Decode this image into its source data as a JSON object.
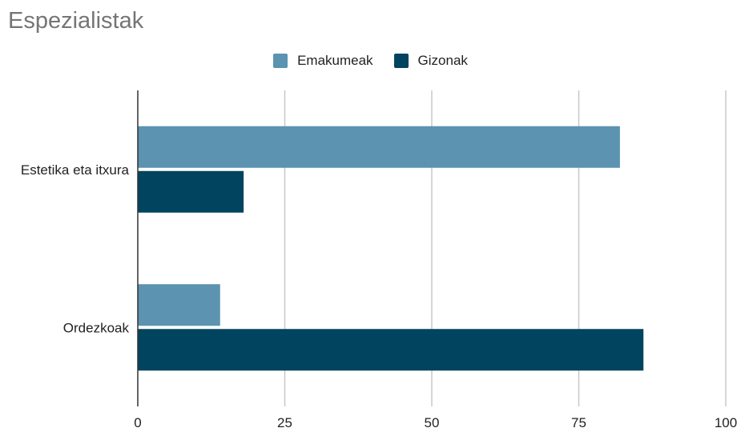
{
  "chart_data": {
    "type": "bar",
    "orientation": "horizontal",
    "title": "Espezialistak",
    "categories": [
      "Estetika eta itxura",
      "Ordezkoak"
    ],
    "series": [
      {
        "name": "Emakumeak",
        "values": [
          82,
          14
        ],
        "color": "#5b93b0"
      },
      {
        "name": "Gizonak",
        "values": [
          18,
          86
        ],
        "color": "#00445f"
      }
    ],
    "xlim": [
      0,
      100
    ],
    "xticks": [
      "0",
      "25",
      "50",
      "75",
      "100"
    ],
    "xlabel": "",
    "ylabel": "",
    "grid": true,
    "legend_position": "top"
  }
}
